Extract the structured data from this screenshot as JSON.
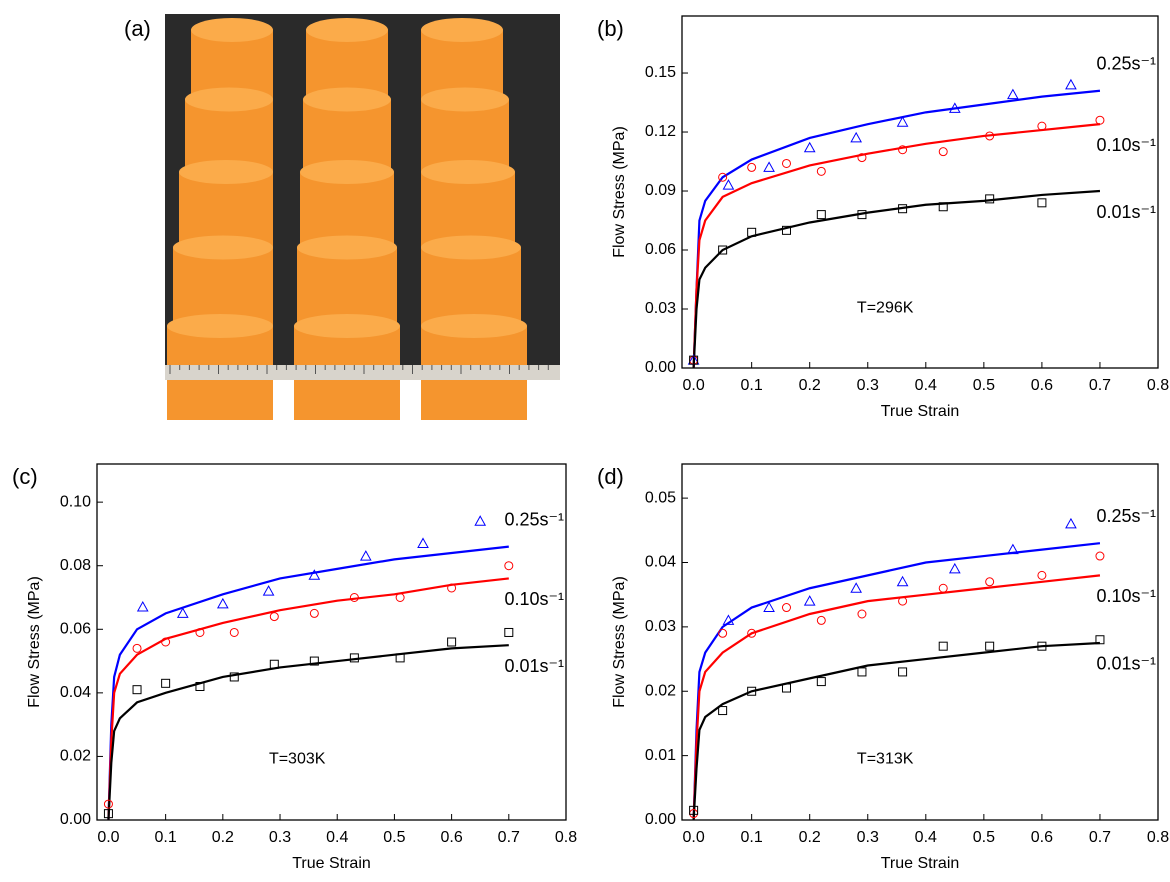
{
  "photo": {
    "label": "(a)"
  },
  "chart_data": [
    {
      "type": "line",
      "panel": "(b)",
      "annotation": "T=296K",
      "x_label": "True Strain",
      "y_label": "Flow Stress (MPa)",
      "xlim": [
        -0.02,
        0.8
      ],
      "ylim": [
        0,
        0.179
      ],
      "xticks": [
        {
          "value": 0,
          "label": "0.0"
        },
        0.1,
        0.2,
        0.3,
        0.4,
        0.5,
        0.6,
        0.7,
        0.8
      ],
      "yticks": [
        {
          "value": 0,
          "label": "0.00"
        },
        0.03,
        0.06,
        0.09,
        0.12,
        0.15
      ],
      "x": [
        0,
        0.005,
        0.01,
        0.02,
        0.05,
        0.1,
        0.2,
        0.3,
        0.4,
        0.5,
        0.6,
        0.7
      ],
      "series": [
        {
          "name": "0.25s⁻¹",
          "color": "#0000ff",
          "values": [
            0,
            0.04,
            0.075,
            0.085,
            0.097,
            0.106,
            0.117,
            0.124,
            0.13,
            0.134,
            0.138,
            0.141
          ]
        },
        {
          "name": "0.10s⁻¹",
          "color": "#ff0000",
          "values": [
            0,
            0.04,
            0.065,
            0.075,
            0.087,
            0.094,
            0.103,
            0.109,
            0.114,
            0.118,
            0.121,
            0.124
          ]
        },
        {
          "name": "0.01s⁻¹",
          "color": "#000000",
          "values": [
            0,
            0.03,
            0.045,
            0.051,
            0.06,
            0.067,
            0.074,
            0.079,
            0.083,
            0.085,
            0.088,
            0.09
          ]
        }
      ],
      "points": [
        {
          "marker": "triangle",
          "color": "#0000ff",
          "x": [
            0,
            0.06,
            0.13,
            0.2,
            0.28,
            0.36,
            0.45,
            0.55,
            0.65
          ],
          "values": [
            0.004,
            0.093,
            0.102,
            0.112,
            0.117,
            0.125,
            0.132,
            0.139,
            0.144
          ]
        },
        {
          "marker": "circle",
          "color": "#ff0000",
          "x": [
            0,
            0.05,
            0.1,
            0.16,
            0.22,
            0.29,
            0.36,
            0.43,
            0.51,
            0.6,
            0.7
          ],
          "values": [
            0.004,
            0.097,
            0.102,
            0.104,
            0.1,
            0.107,
            0.111,
            0.11,
            0.118,
            0.123,
            0.126
          ]
        },
        {
          "marker": "square",
          "color": "#000000",
          "x": [
            0,
            0.05,
            0.1,
            0.16,
            0.22,
            0.29,
            0.36,
            0.43,
            0.51,
            0.6
          ],
          "values": [
            0.004,
            0.06,
            0.069,
            0.07,
            0.078,
            0.078,
            0.081,
            0.082,
            0.086,
            0.084
          ]
        }
      ]
    },
    {
      "type": "line",
      "panel": "(c)",
      "annotation": "T=303K",
      "x_label": "True Strain",
      "y_label": "Flow Stress (MPa)",
      "xlim": [
        -0.02,
        0.8
      ],
      "ylim": [
        0,
        0.112
      ],
      "xticks": [
        {
          "value": 0,
          "label": "0.0"
        },
        0.1,
        0.2,
        0.3,
        0.4,
        0.5,
        0.6,
        0.7,
        0.8
      ],
      "yticks": [
        {
          "value": 0,
          "label": "0.00"
        },
        0.02,
        0.04,
        0.06,
        0.08,
        {
          "value": 0.1,
          "label": "0.10"
        }
      ],
      "x": [
        0,
        0.005,
        0.01,
        0.02,
        0.05,
        0.1,
        0.2,
        0.3,
        0.4,
        0.5,
        0.6,
        0.7
      ],
      "series": [
        {
          "name": "0.25s⁻¹",
          "color": "#0000ff",
          "values": [
            0,
            0.03,
            0.045,
            0.052,
            0.06,
            0.065,
            0.071,
            0.076,
            0.079,
            0.082,
            0.084,
            0.086
          ]
        },
        {
          "name": "0.10s⁻¹",
          "color": "#ff0000",
          "values": [
            0,
            0.025,
            0.04,
            0.046,
            0.052,
            0.057,
            0.062,
            0.066,
            0.069,
            0.071,
            0.074,
            0.076
          ]
        },
        {
          "name": "0.01s⁻¹",
          "color": "#000000",
          "values": [
            0,
            0.018,
            0.028,
            0.032,
            0.037,
            0.04,
            0.045,
            0.048,
            0.05,
            0.052,
            0.054,
            0.055
          ]
        }
      ],
      "points": [
        {
          "marker": "triangle",
          "color": "#0000ff",
          "x": [
            0.06,
            0.13,
            0.2,
            0.28,
            0.36,
            0.45,
            0.55,
            0.65
          ],
          "values": [
            0.067,
            0.065,
            0.068,
            0.072,
            0.077,
            0.083,
            0.087,
            0.094
          ]
        },
        {
          "marker": "circle",
          "color": "#ff0000",
          "x": [
            0,
            0.05,
            0.1,
            0.16,
            0.22,
            0.29,
            0.36,
            0.43,
            0.51,
            0.6,
            0.7
          ],
          "values": [
            0.005,
            0.054,
            0.056,
            0.059,
            0.059,
            0.064,
            0.065,
            0.07,
            0.07,
            0.073,
            0.08
          ]
        },
        {
          "marker": "square",
          "color": "#000000",
          "x": [
            0,
            0.05,
            0.1,
            0.16,
            0.22,
            0.29,
            0.36,
            0.43,
            0.51,
            0.6,
            0.7
          ],
          "values": [
            0.002,
            0.041,
            0.043,
            0.042,
            0.045,
            0.049,
            0.05,
            0.051,
            0.051,
            0.056,
            0.059
          ]
        }
      ]
    },
    {
      "type": "line",
      "panel": "(d)",
      "annotation": "T=313K",
      "x_label": "True Strain",
      "y_label": "Flow Stress (MPa)",
      "xlim": [
        -0.02,
        0.8
      ],
      "ylim": [
        0,
        0.0553
      ],
      "xticks": [
        {
          "value": 0,
          "label": "0.0"
        },
        0.1,
        0.2,
        0.3,
        0.4,
        0.5,
        0.6,
        0.7,
        0.8
      ],
      "yticks": [
        {
          "value": 0,
          "label": "0.00"
        },
        0.01,
        0.02,
        0.03,
        0.04,
        0.05
      ],
      "x": [
        0,
        0.005,
        0.01,
        0.02,
        0.05,
        0.1,
        0.2,
        0.3,
        0.4,
        0.5,
        0.6,
        0.7
      ],
      "series": [
        {
          "name": "0.25s⁻¹",
          "color": "#0000ff",
          "values": [
            0,
            0.014,
            0.023,
            0.026,
            0.03,
            0.033,
            0.036,
            0.038,
            0.04,
            0.041,
            0.042,
            0.043
          ]
        },
        {
          "name": "0.10s⁻¹",
          "color": "#ff0000",
          "values": [
            0,
            0.012,
            0.02,
            0.023,
            0.026,
            0.029,
            0.032,
            0.034,
            0.035,
            0.036,
            0.037,
            0.038
          ]
        },
        {
          "name": "0.01s⁻¹",
          "color": "#000000",
          "values": [
            0,
            0.008,
            0.014,
            0.016,
            0.018,
            0.02,
            0.022,
            0.024,
            0.025,
            0.026,
            0.027,
            0.0275
          ]
        }
      ],
      "points": [
        {
          "marker": "triangle",
          "color": "#0000ff",
          "x": [
            0.06,
            0.13,
            0.2,
            0.28,
            0.36,
            0.45,
            0.55,
            0.65
          ],
          "values": [
            0.031,
            0.033,
            0.034,
            0.036,
            0.037,
            0.039,
            0.042,
            0.046
          ]
        },
        {
          "marker": "circle",
          "color": "#ff0000",
          "x": [
            0,
            0.05,
            0.1,
            0.16,
            0.22,
            0.29,
            0.36,
            0.43,
            0.51,
            0.6,
            0.7
          ],
          "values": [
            0.001,
            0.029,
            0.029,
            0.033,
            0.031,
            0.032,
            0.034,
            0.036,
            0.037,
            0.038,
            0.041
          ]
        },
        {
          "marker": "square",
          "color": "#000000",
          "x": [
            0,
            0.05,
            0.1,
            0.16,
            0.22,
            0.29,
            0.36,
            0.43,
            0.51,
            0.6,
            0.7
          ],
          "values": [
            0.0015,
            0.017,
            0.02,
            0.0205,
            0.0215,
            0.023,
            0.023,
            0.027,
            0.027,
            0.027,
            0.028
          ]
        }
      ]
    }
  ]
}
